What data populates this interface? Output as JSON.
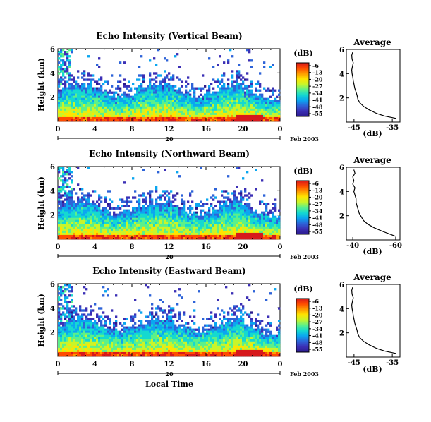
{
  "figure": {
    "xlabel": "Local Time",
    "date_label": "Feb 2003",
    "colorbar_title": "(dB)",
    "colorbar_ticks": [
      "-6",
      "-13",
      "-20",
      "-27",
      "-34",
      "-41",
      "-48",
      "-55"
    ],
    "colorbar_colors": [
      "#d7191c",
      "#ff4b00",
      "#ff9a00",
      "#ffe400",
      "#c8f52a",
      "#5cf08a",
      "#14d9d0",
      "#0aa6f0",
      "#2d63d8",
      "#3b2fb5",
      "#2a1a8c"
    ]
  },
  "chart_data": [
    {
      "type": "heatmap",
      "title": "Echo Intensity (Vertical Beam)",
      "ylabel": "Height (km)",
      "x_ticks": [
        "0",
        "4",
        "8",
        "12",
        "16",
        "20",
        "0"
      ],
      "day_label": "20",
      "y_ticks": [
        "2",
        "4",
        "6"
      ],
      "ylim": [
        0,
        6
      ],
      "xlim": [
        0,
        24
      ],
      "profile": {
        "title": "Average",
        "xlabel": "(dB)",
        "x_ticks": [
          "-45",
          "-35"
        ],
        "xlim": [
          -47,
          -33
        ],
        "heights": [
          0.3,
          0.5,
          0.7,
          1.0,
          1.3,
          1.6,
          1.9,
          2.2,
          2.5,
          2.8,
          3.1,
          3.4,
          3.7,
          4.0,
          4.3,
          4.6,
          4.9,
          5.2,
          5.5,
          5.8
        ],
        "values": [
          -34,
          -37,
          -39,
          -41,
          -42.5,
          -43.5,
          -44,
          -44.2,
          -44.5,
          -44.8,
          -45,
          -45.2,
          -45.3,
          -45.5,
          -45.6,
          -45.4,
          -45.2,
          -45.5,
          -45.6,
          -45.3
        ]
      }
    },
    {
      "type": "heatmap",
      "title": "Echo Intensity (Northward Beam)",
      "ylabel": "Height (km)",
      "x_ticks": [
        "0",
        "4",
        "8",
        "12",
        "16",
        "20",
        "0"
      ],
      "day_label": "20",
      "y_ticks": [
        "2",
        "4",
        "6"
      ],
      "ylim": [
        0,
        6
      ],
      "xlim": [
        0,
        24
      ],
      "profile": {
        "title": "Average",
        "xlabel": "(dB)",
        "x_ticks": [
          "-40",
          "-60"
        ],
        "xlim": [
          -37,
          -62
        ],
        "heights": [
          0.3,
          0.5,
          0.7,
          1.0,
          1.3,
          1.6,
          1.9,
          2.2,
          2.5,
          2.8,
          3.1,
          3.4,
          3.7,
          4.0,
          4.3,
          4.6,
          4.9,
          5.2,
          5.5,
          5.8
        ],
        "values": [
          -60,
          -57,
          -54,
          -50,
          -47,
          -45,
          -44,
          -43,
          -42.5,
          -42,
          -41.5,
          -41.5,
          -41,
          -40.5,
          -41,
          -40,
          -40.5,
          -40,
          -41,
          -40.5
        ]
      }
    },
    {
      "type": "heatmap",
      "title": "Echo Intensity (Eastward Beam)",
      "ylabel": "Height (km)",
      "x_ticks": [
        "0",
        "4",
        "8",
        "12",
        "16",
        "20",
        "0"
      ],
      "day_label": "20",
      "y_ticks": [
        "2",
        "4",
        "6"
      ],
      "ylim": [
        0,
        6
      ],
      "xlim": [
        0,
        24
      ],
      "profile": {
        "title": "Average",
        "xlabel": "(dB)",
        "x_ticks": [
          "-45",
          "-35"
        ],
        "xlim": [
          -47,
          -33
        ],
        "heights": [
          0.3,
          0.5,
          0.7,
          1.0,
          1.3,
          1.6,
          1.9,
          2.2,
          2.5,
          2.8,
          3.1,
          3.4,
          3.7,
          4.0,
          4.3,
          4.6,
          4.9,
          5.2,
          5.5,
          5.8
        ],
        "values": [
          -34,
          -37,
          -39,
          -41,
          -42.5,
          -43.5,
          -44,
          -44.2,
          -44.5,
          -44.8,
          -45,
          -45.2,
          -45.3,
          -45.5,
          -45.6,
          -45.4,
          -45.2,
          -45.5,
          -45.6,
          -45.3
        ]
      }
    }
  ]
}
